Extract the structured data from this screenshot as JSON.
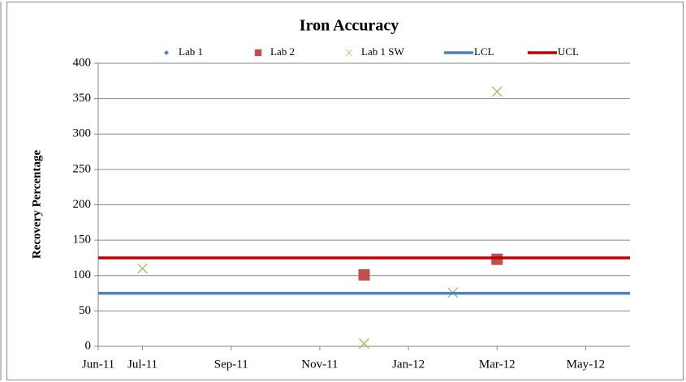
{
  "chart_data": {
    "type": "scatter",
    "title": "Iron Accuracy",
    "y_label": "Recovery Percentage",
    "xlim": [
      "2011-06",
      "2012-06"
    ],
    "xticks": [
      {
        "value": "2011-06",
        "label": "Jun-11"
      },
      {
        "value": "2011-07",
        "label": "Jul-11"
      },
      {
        "value": "2011-09",
        "label": "Sep-11"
      },
      {
        "value": "2011-11",
        "label": "Nov-11"
      },
      {
        "value": "2012-01",
        "label": "Jan-12"
      },
      {
        "value": "2012-03",
        "label": "Mar-12"
      },
      {
        "value": "2012-05",
        "label": "May-12"
      }
    ],
    "ylim": [
      0,
      400
    ],
    "yticks": [
      0,
      50,
      100,
      150,
      200,
      250,
      300,
      350,
      400
    ],
    "grid": true,
    "legend": "top",
    "series": [
      {
        "name": "Lab 1",
        "color": "#4f81bd",
        "marker": "diamond",
        "x": [],
        "values": []
      },
      {
        "name": "Lab 2",
        "color": "#c0504d",
        "marker": "square",
        "x": [
          "2011-12",
          "2012-03"
        ],
        "values": [
          101,
          123
        ]
      },
      {
        "name": "Lab 1 SW",
        "color": "#9bbb59",
        "marker": "x",
        "x": [
          "2011-07",
          "2011-12",
          "2012-02",
          "2012-03"
        ],
        "values": [
          110,
          4,
          76,
          360
        ]
      },
      {
        "name": "LCL",
        "color": "#4f81bd",
        "marker": "line",
        "x": [
          "2011-06",
          "2012-06"
        ],
        "values": [
          75,
          75
        ]
      },
      {
        "name": "UCL",
        "color": "#c00000",
        "marker": "line",
        "x": [
          "2011-06",
          "2012-06"
        ],
        "values": [
          125,
          125
        ]
      }
    ]
  }
}
